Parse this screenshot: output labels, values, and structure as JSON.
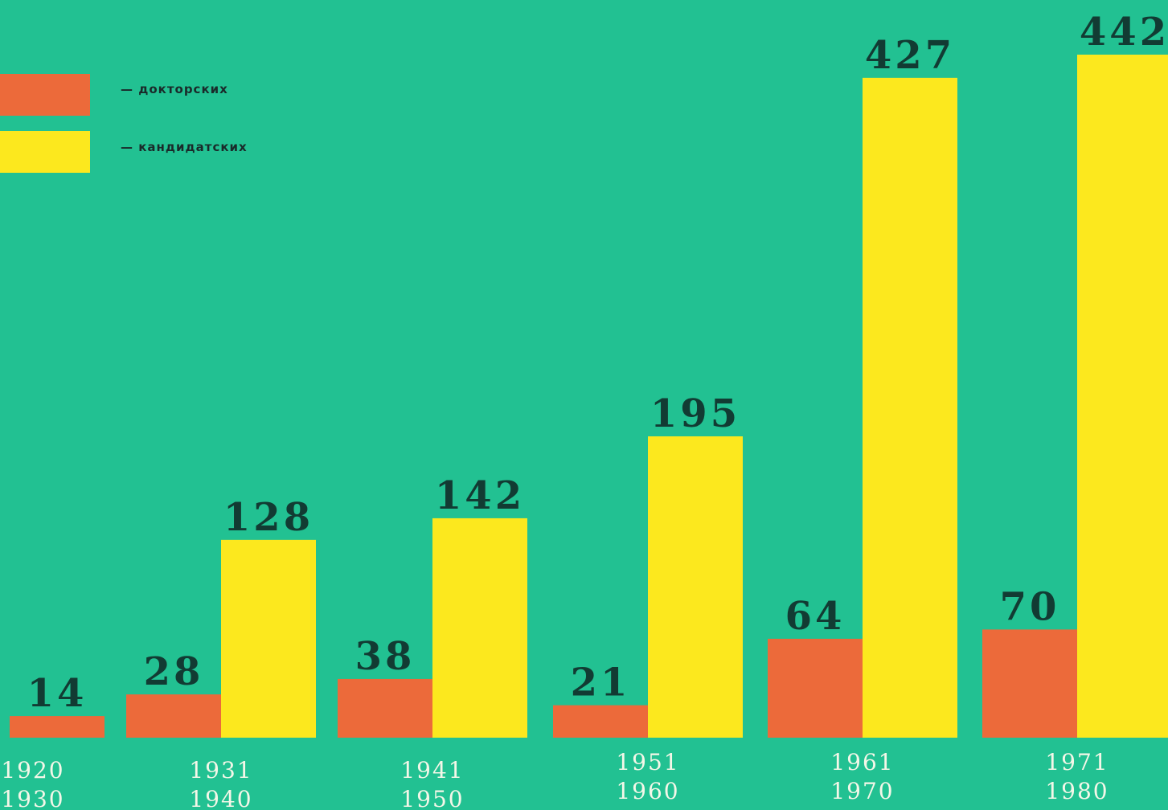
{
  "chart_data": {
    "type": "bar",
    "title": "",
    "xlabel": "",
    "ylabel": "",
    "grid": false,
    "legend_position": "top-left",
    "ylim": [
      0,
      460
    ],
    "categories": [
      [
        "1920",
        "1930"
      ],
      [
        "1931",
        "1940"
      ],
      [
        "1941",
        "1950"
      ],
      [
        "1951",
        "1960"
      ],
      [
        "1961",
        "1970"
      ],
      [
        "1971",
        "1980"
      ]
    ],
    "series": [
      {
        "name": "— докторских",
        "color": "#ec6a3a",
        "values": [
          14,
          28,
          38,
          21,
          64,
          70
        ]
      },
      {
        "name": "— кандидатских",
        "color": "#fce81e",
        "values": [
          null,
          128,
          142,
          195,
          427,
          442
        ]
      }
    ],
    "background_color": "#22c192",
    "label_color": "#123b33"
  }
}
